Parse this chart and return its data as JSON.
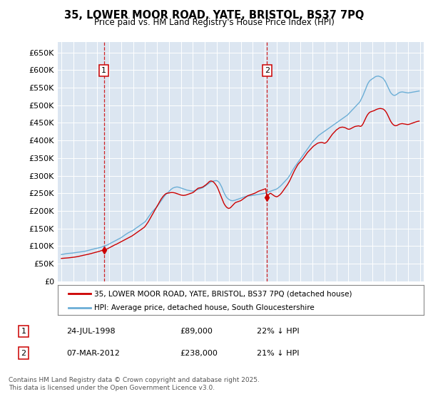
{
  "title": "35, LOWER MOOR ROAD, YATE, BRISTOL, BS37 7PQ",
  "subtitle": "Price paid vs. HM Land Registry's House Price Index (HPI)",
  "legend_line1": "35, LOWER MOOR ROAD, YATE, BRISTOL, BS37 7PQ (detached house)",
  "legend_line2": "HPI: Average price, detached house, South Gloucestershire",
  "footnote": "Contains HM Land Registry data © Crown copyright and database right 2025.\nThis data is licensed under the Open Government Licence v3.0.",
  "transactions": [
    {
      "label": "1",
      "date": "24-JUL-1998",
      "price": 89000,
      "pct": "22%",
      "direction": "↓",
      "year_x": 1998.56
    },
    {
      "label": "2",
      "date": "07-MAR-2012",
      "price": 238000,
      "pct": "21%",
      "direction": "↓",
      "year_x": 2012.19
    }
  ],
  "vline_color": "#cc0000",
  "hpi_color": "#6baed6",
  "price_color": "#cc0000",
  "plot_bg": "#dce6f1",
  "grid_color": "#ffffff",
  "ylim": [
    0,
    680000
  ],
  "yticks": [
    0,
    50000,
    100000,
    150000,
    200000,
    250000,
    300000,
    350000,
    400000,
    450000,
    500000,
    550000,
    600000,
    650000
  ],
  "xlim_start": 1994.7,
  "xlim_end": 2025.3,
  "xticks": [
    1995,
    1996,
    1997,
    1998,
    1999,
    2000,
    2001,
    2002,
    2003,
    2004,
    2005,
    2006,
    2007,
    2008,
    2009,
    2010,
    2011,
    2012,
    2013,
    2014,
    2015,
    2016,
    2017,
    2018,
    2019,
    2020,
    2021,
    2022,
    2023,
    2024,
    2025
  ],
  "hpi_years": [
    1995.0,
    1995.08,
    1995.17,
    1995.25,
    1995.33,
    1995.42,
    1995.5,
    1995.58,
    1995.67,
    1995.75,
    1995.83,
    1995.92,
    1996.0,
    1996.08,
    1996.17,
    1996.25,
    1996.33,
    1996.42,
    1996.5,
    1996.58,
    1996.67,
    1996.75,
    1996.83,
    1996.92,
    1997.0,
    1997.08,
    1997.17,
    1997.25,
    1997.33,
    1997.42,
    1997.5,
    1997.58,
    1997.67,
    1997.75,
    1997.83,
    1997.92,
    1998.0,
    1998.08,
    1998.17,
    1998.25,
    1998.33,
    1998.42,
    1998.5,
    1998.58,
    1998.67,
    1998.75,
    1998.83,
    1998.92,
    1999.0,
    1999.08,
    1999.17,
    1999.25,
    1999.33,
    1999.42,
    1999.5,
    1999.58,
    1999.67,
    1999.75,
    1999.83,
    1999.92,
    2000.0,
    2000.08,
    2000.17,
    2000.25,
    2000.33,
    2000.42,
    2000.5,
    2000.58,
    2000.67,
    2000.75,
    2000.83,
    2000.92,
    2001.0,
    2001.08,
    2001.17,
    2001.25,
    2001.33,
    2001.42,
    2001.5,
    2001.58,
    2001.67,
    2001.75,
    2001.83,
    2001.92,
    2002.0,
    2002.08,
    2002.17,
    2002.25,
    2002.33,
    2002.42,
    2002.5,
    2002.58,
    2002.67,
    2002.75,
    2002.83,
    2002.92,
    2003.0,
    2003.08,
    2003.17,
    2003.25,
    2003.33,
    2003.42,
    2003.5,
    2003.58,
    2003.67,
    2003.75,
    2003.83,
    2003.92,
    2004.0,
    2004.08,
    2004.17,
    2004.25,
    2004.33,
    2004.42,
    2004.5,
    2004.58,
    2004.67,
    2004.75,
    2004.83,
    2004.92,
    2005.0,
    2005.08,
    2005.17,
    2005.25,
    2005.33,
    2005.42,
    2005.5,
    2005.58,
    2005.67,
    2005.75,
    2005.83,
    2005.92,
    2006.0,
    2006.08,
    2006.17,
    2006.25,
    2006.33,
    2006.42,
    2006.5,
    2006.58,
    2006.67,
    2006.75,
    2006.83,
    2006.92,
    2007.0,
    2007.08,
    2007.17,
    2007.25,
    2007.33,
    2007.42,
    2007.5,
    2007.58,
    2007.67,
    2007.75,
    2007.83,
    2007.92,
    2008.0,
    2008.08,
    2008.17,
    2008.25,
    2008.33,
    2008.42,
    2008.5,
    2008.58,
    2008.67,
    2008.75,
    2008.83,
    2008.92,
    2009.0,
    2009.08,
    2009.17,
    2009.25,
    2009.33,
    2009.42,
    2009.5,
    2009.58,
    2009.67,
    2009.75,
    2009.83,
    2009.92,
    2010.0,
    2010.08,
    2010.17,
    2010.25,
    2010.33,
    2010.42,
    2010.5,
    2010.58,
    2010.67,
    2010.75,
    2010.83,
    2010.92,
    2011.0,
    2011.08,
    2011.17,
    2011.25,
    2011.33,
    2011.42,
    2011.5,
    2011.58,
    2011.67,
    2011.75,
    2011.83,
    2011.92,
    2012.0,
    2012.08,
    2012.17,
    2012.25,
    2012.33,
    2012.42,
    2012.5,
    2012.58,
    2012.67,
    2012.75,
    2012.83,
    2012.92,
    2013.0,
    2013.08,
    2013.17,
    2013.25,
    2013.33,
    2013.42,
    2013.5,
    2013.58,
    2013.67,
    2013.75,
    2013.83,
    2013.92,
    2014.0,
    2014.08,
    2014.17,
    2014.25,
    2014.33,
    2014.42,
    2014.5,
    2014.58,
    2014.67,
    2014.75,
    2014.83,
    2014.92,
    2015.0,
    2015.08,
    2015.17,
    2015.25,
    2015.33,
    2015.42,
    2015.5,
    2015.58,
    2015.67,
    2015.75,
    2015.83,
    2015.92,
    2016.0,
    2016.08,
    2016.17,
    2016.25,
    2016.33,
    2016.42,
    2016.5,
    2016.58,
    2016.67,
    2016.75,
    2016.83,
    2016.92,
    2017.0,
    2017.08,
    2017.17,
    2017.25,
    2017.33,
    2017.42,
    2017.5,
    2017.58,
    2017.67,
    2017.75,
    2017.83,
    2017.92,
    2018.0,
    2018.08,
    2018.17,
    2018.25,
    2018.33,
    2018.42,
    2018.5,
    2018.58,
    2018.67,
    2018.75,
    2018.83,
    2018.92,
    2019.0,
    2019.08,
    2019.17,
    2019.25,
    2019.33,
    2019.42,
    2019.5,
    2019.58,
    2019.67,
    2019.75,
    2019.83,
    2019.92,
    2020.0,
    2020.08,
    2020.17,
    2020.25,
    2020.33,
    2020.42,
    2020.5,
    2020.58,
    2020.67,
    2020.75,
    2020.83,
    2020.92,
    2021.0,
    2021.08,
    2021.17,
    2021.25,
    2021.33,
    2021.42,
    2021.5,
    2021.58,
    2021.67,
    2021.75,
    2021.83,
    2021.92,
    2022.0,
    2022.08,
    2022.17,
    2022.25,
    2022.33,
    2022.42,
    2022.5,
    2022.58,
    2022.67,
    2022.75,
    2022.83,
    2022.92,
    2023.0,
    2023.08,
    2023.17,
    2023.25,
    2023.33,
    2023.42,
    2023.5,
    2023.58,
    2023.67,
    2023.75,
    2023.83,
    2023.92,
    2024.0,
    2024.08,
    2024.17,
    2024.25,
    2024.33,
    2024.42,
    2024.5,
    2024.58,
    2024.67,
    2024.75,
    2024.83,
    2024.92
  ],
  "hpi_values": [
    76000,
    76500,
    77000,
    77500,
    78000,
    78500,
    79000,
    79200,
    79500,
    79800,
    80000,
    80200,
    80500,
    81000,
    81500,
    82000,
    82300,
    82700,
    83000,
    83400,
    83800,
    84200,
    84600,
    85000,
    85500,
    86200,
    87000,
    87800,
    88500,
    89200,
    90000,
    90800,
    91500,
    92200,
    93000,
    93500,
    94000,
    94800,
    95500,
    96200,
    97000,
    98000,
    99000,
    100000,
    101000,
    102000,
    103000,
    104500,
    106000,
    107500,
    109000,
    110500,
    112000,
    113500,
    115000,
    116500,
    118000,
    119500,
    121000,
    122500,
    124000,
    126000,
    128000,
    130000,
    132000,
    134000,
    136000,
    137500,
    139000,
    140500,
    142000,
    143500,
    145000,
    147000,
    149000,
    151000,
    153000,
    155000,
    157000,
    159000,
    161000,
    163000,
    165000,
    167000,
    169000,
    173000,
    177000,
    181000,
    185000,
    189000,
    193000,
    197000,
    200000,
    203000,
    206000,
    209000,
    212000,
    216000,
    220000,
    224000,
    228000,
    232000,
    236000,
    240000,
    244000,
    247000,
    250000,
    252000,
    255000,
    258000,
    261000,
    263000,
    265000,
    266000,
    267000,
    267500,
    268000,
    267500,
    267000,
    266000,
    265000,
    264000,
    263000,
    262000,
    261000,
    260000,
    259000,
    258500,
    258000,
    257500,
    257000,
    256500,
    256000,
    257000,
    258000,
    259000,
    260000,
    261000,
    262000,
    263000,
    264000,
    265000,
    266000,
    268000,
    270000,
    272000,
    274000,
    276000,
    278000,
    280000,
    282000,
    283000,
    284000,
    285000,
    285500,
    286000,
    286000,
    284000,
    282000,
    278000,
    273000,
    267000,
    260000,
    253000,
    247000,
    242000,
    238000,
    235000,
    233000,
    231000,
    230000,
    229000,
    229000,
    229500,
    230000,
    231000,
    232000,
    233000,
    234000,
    235000,
    236000,
    237000,
    238000,
    239000,
    240000,
    241000,
    241500,
    242000,
    242500,
    243000,
    243200,
    243500,
    244000,
    244500,
    245000,
    245500,
    246000,
    246500,
    247000,
    247500,
    248000,
    248500,
    249000,
    249500,
    250000,
    251000,
    252000,
    253000,
    254000,
    255000,
    256000,
    257000,
    258000,
    259000,
    260000,
    261000,
    262000,
    264000,
    266000,
    268500,
    271000,
    274000,
    277000,
    280000,
    283000,
    286000,
    289000,
    292000,
    296000,
    300000,
    305000,
    310000,
    315000,
    320000,
    324000,
    328000,
    332000,
    336000,
    340000,
    344000,
    348000,
    352000,
    356000,
    360000,
    364000,
    368000,
    372000,
    376000,
    380000,
    384000,
    388000,
    392000,
    396000,
    399000,
    402000,
    405000,
    408000,
    411000,
    414000,
    416000,
    418000,
    420000,
    422000,
    424000,
    426000,
    428000,
    430000,
    432000,
    434000,
    436000,
    438000,
    440000,
    442000,
    444000,
    446000,
    448000,
    450000,
    452000,
    454000,
    456000,
    458000,
    460000,
    462000,
    464000,
    466000,
    468000,
    470000,
    472000,
    475000,
    478000,
    481000,
    484000,
    487000,
    490000,
    493000,
    496000,
    499000,
    502000,
    505000,
    508000,
    512000,
    518000,
    524000,
    530000,
    537000,
    544000,
    551000,
    558000,
    564000,
    568000,
    571000,
    573000,
    575000,
    577000,
    579000,
    581000,
    582000,
    582500,
    583000,
    582000,
    581000,
    580000,
    578000,
    576000,
    572000,
    568000,
    562000,
    556000,
    550000,
    544000,
    538000,
    534000,
    531000,
    529000,
    528000,
    528500,
    530000,
    532000,
    534000,
    536000,
    537000,
    537500,
    538000,
    537500,
    537000,
    536500,
    536000,
    535500,
    535000,
    535500,
    536000,
    536500,
    537000,
    537500,
    538000,
    538500,
    539000,
    539500,
    540000,
    540500
  ],
  "price_years": [
    1995.0,
    1995.083,
    1995.167,
    1995.25,
    1995.333,
    1995.417,
    1995.5,
    1995.583,
    1995.667,
    1995.75,
    1995.833,
    1995.917,
    1996.0,
    1996.083,
    1996.167,
    1996.25,
    1996.333,
    1996.417,
    1996.5,
    1996.583,
    1996.667,
    1996.75,
    1996.833,
    1996.917,
    1997.0,
    1997.083,
    1997.167,
    1997.25,
    1997.333,
    1997.417,
    1997.5,
    1997.583,
    1997.667,
    1997.75,
    1997.833,
    1997.917,
    1998.0,
    1998.083,
    1998.167,
    1998.25,
    1998.333,
    1998.417,
    1998.5,
    1998.56,
    1998.667,
    1998.75,
    1998.833,
    1998.917,
    1999.0,
    1999.083,
    1999.167,
    1999.25,
    1999.333,
    1999.417,
    1999.5,
    1999.583,
    1999.667,
    1999.75,
    1999.833,
    1999.917,
    2000.0,
    2000.083,
    2000.167,
    2000.25,
    2000.333,
    2000.417,
    2000.5,
    2000.583,
    2000.667,
    2000.75,
    2000.833,
    2000.917,
    2001.0,
    2001.083,
    2001.167,
    2001.25,
    2001.333,
    2001.417,
    2001.5,
    2001.583,
    2001.667,
    2001.75,
    2001.833,
    2001.917,
    2002.0,
    2002.083,
    2002.167,
    2002.25,
    2002.333,
    2002.417,
    2002.5,
    2002.583,
    2002.667,
    2002.75,
    2002.833,
    2002.917,
    2003.0,
    2003.083,
    2003.167,
    2003.25,
    2003.333,
    2003.417,
    2003.5,
    2003.583,
    2003.667,
    2003.75,
    2003.833,
    2003.917,
    2004.0,
    2004.083,
    2004.167,
    2004.25,
    2004.333,
    2004.417,
    2004.5,
    2004.583,
    2004.667,
    2004.75,
    2004.833,
    2004.917,
    2005.0,
    2005.083,
    2005.167,
    2005.25,
    2005.333,
    2005.417,
    2005.5,
    2005.583,
    2005.667,
    2005.75,
    2005.833,
    2005.917,
    2006.0,
    2006.083,
    2006.167,
    2006.25,
    2006.333,
    2006.417,
    2006.5,
    2006.583,
    2006.667,
    2006.75,
    2006.833,
    2006.917,
    2007.0,
    2007.083,
    2007.167,
    2007.25,
    2007.333,
    2007.417,
    2007.5,
    2007.583,
    2007.667,
    2007.75,
    2007.833,
    2007.917,
    2008.0,
    2008.083,
    2008.167,
    2008.25,
    2008.333,
    2008.417,
    2008.5,
    2008.583,
    2008.667,
    2008.75,
    2008.833,
    2008.917,
    2009.0,
    2009.083,
    2009.167,
    2009.25,
    2009.333,
    2009.417,
    2009.5,
    2009.583,
    2009.667,
    2009.75,
    2009.833,
    2009.917,
    2010.0,
    2010.083,
    2010.167,
    2010.25,
    2010.333,
    2010.417,
    2010.5,
    2010.583,
    2010.667,
    2010.75,
    2010.833,
    2010.917,
    2011.0,
    2011.083,
    2011.167,
    2011.25,
    2011.333,
    2011.417,
    2011.5,
    2011.583,
    2011.667,
    2011.75,
    2011.833,
    2011.917,
    2012.0,
    2012.083,
    2012.19,
    2012.25,
    2012.333,
    2012.417,
    2012.5,
    2012.583,
    2012.667,
    2012.75,
    2012.833,
    2012.917,
    2013.0,
    2013.083,
    2013.167,
    2013.25,
    2013.333,
    2013.417,
    2013.5,
    2013.583,
    2013.667,
    2013.75,
    2013.833,
    2013.917,
    2014.0,
    2014.083,
    2014.167,
    2014.25,
    2014.333,
    2014.417,
    2014.5,
    2014.583,
    2014.667,
    2014.75,
    2014.833,
    2014.917,
    2015.0,
    2015.083,
    2015.167,
    2015.25,
    2015.333,
    2015.417,
    2015.5,
    2015.583,
    2015.667,
    2015.75,
    2015.833,
    2015.917,
    2016.0,
    2016.083,
    2016.167,
    2016.25,
    2016.333,
    2016.417,
    2016.5,
    2016.583,
    2016.667,
    2016.75,
    2016.833,
    2016.917,
    2017.0,
    2017.083,
    2017.167,
    2017.25,
    2017.333,
    2017.417,
    2017.5,
    2017.583,
    2017.667,
    2017.75,
    2017.833,
    2017.917,
    2018.0,
    2018.083,
    2018.167,
    2018.25,
    2018.333,
    2018.417,
    2018.5,
    2018.583,
    2018.667,
    2018.75,
    2018.833,
    2018.917,
    2019.0,
    2019.083,
    2019.167,
    2019.25,
    2019.333,
    2019.417,
    2019.5,
    2019.583,
    2019.667,
    2019.75,
    2019.833,
    2019.917,
    2020.0,
    2020.083,
    2020.167,
    2020.25,
    2020.333,
    2020.417,
    2020.5,
    2020.583,
    2020.667,
    2020.75,
    2020.833,
    2020.917,
    2021.0,
    2021.083,
    2021.167,
    2021.25,
    2021.333,
    2021.417,
    2021.5,
    2021.583,
    2021.667,
    2021.75,
    2021.833,
    2021.917,
    2022.0,
    2022.083,
    2022.167,
    2022.25,
    2022.333,
    2022.417,
    2022.5,
    2022.583,
    2022.667,
    2022.75,
    2022.833,
    2022.917,
    2023.0,
    2023.083,
    2023.167,
    2023.25,
    2023.333,
    2023.417,
    2023.5,
    2023.583,
    2023.667,
    2023.75,
    2023.833,
    2023.917,
    2024.0,
    2024.083,
    2024.167,
    2024.25,
    2024.333,
    2024.417,
    2024.5,
    2024.583,
    2024.667,
    2024.75,
    2024.83,
    2024.917
  ],
  "price_values": [
    65000,
    65200,
    65400,
    65600,
    65800,
    66000,
    66300,
    66600,
    66900,
    67200,
    67500,
    67800,
    68200,
    68600,
    69000,
    69500,
    70000,
    70500,
    71200,
    71800,
    72500,
    73200,
    73800,
    74500,
    75000,
    75500,
    76200,
    76800,
    77500,
    78200,
    79000,
    79800,
    80500,
    81200,
    82000,
    82800,
    83500,
    84200,
    85000,
    86000,
    87000,
    88000,
    89000,
    89000,
    90000,
    91000,
    92000,
    93500,
    95000,
    96500,
    98000,
    99500,
    101000,
    102500,
    104000,
    105000,
    106500,
    108000,
    109500,
    111000,
    112500,
    114000,
    115500,
    117000,
    118500,
    120000,
    121500,
    123000,
    124500,
    126000,
    127500,
    129000,
    131000,
    133000,
    135000,
    137000,
    139000,
    141000,
    143000,
    145000,
    147000,
    149000,
    151000,
    153000,
    156000,
    160000,
    164000,
    168000,
    173000,
    178000,
    183000,
    188000,
    193000,
    198000,
    203000,
    208000,
    213000,
    218000,
    223000,
    228000,
    233000,
    237000,
    241000,
    244000,
    247000,
    249000,
    250000,
    250500,
    251000,
    251500,
    252000,
    252000,
    252000,
    251500,
    251000,
    250000,
    249000,
    248000,
    247000,
    246000,
    245000,
    244500,
    244000,
    244000,
    244500,
    245000,
    246000,
    247000,
    248000,
    249000,
    250000,
    251000,
    252000,
    254000,
    256500,
    259000,
    261500,
    264000,
    265000,
    265500,
    266000,
    267000,
    268000,
    270000,
    272000,
    274000,
    276500,
    279000,
    282000,
    284000,
    285000,
    284500,
    283500,
    281000,
    278000,
    274000,
    270000,
    264000,
    257000,
    250000,
    243000,
    236000,
    229000,
    222000,
    217000,
    213000,
    210000,
    208000,
    207000,
    208000,
    210000,
    213000,
    216000,
    219000,
    222000,
    224000,
    225000,
    226000,
    227000,
    228000,
    229000,
    231000,
    233000,
    235000,
    237000,
    239000,
    241000,
    243000,
    244000,
    245000,
    246000,
    247000,
    248000,
    249000,
    250000,
    251500,
    253000,
    254500,
    256000,
    257000,
    258000,
    259000,
    260000,
    261000,
    262000,
    263000,
    238000,
    242000,
    246000,
    249000,
    250000,
    248000,
    246000,
    244000,
    242000,
    241000,
    240000,
    241000,
    243000,
    245000,
    248000,
    251000,
    255000,
    259000,
    263000,
    267000,
    271000,
    275000,
    280000,
    285000,
    291000,
    297000,
    303000,
    309000,
    315000,
    320000,
    325000,
    330000,
    334000,
    337000,
    340000,
    343000,
    346500,
    350000,
    354000,
    358000,
    362000,
    366000,
    369000,
    372000,
    375000,
    378000,
    381000,
    384000,
    386000,
    388000,
    390000,
    392000,
    393000,
    393500,
    394000,
    394500,
    394000,
    393000,
    392000,
    393000,
    395000,
    398000,
    402000,
    406000,
    410000,
    414000,
    418000,
    421000,
    424000,
    427000,
    430000,
    432000,
    434000,
    436000,
    437000,
    437500,
    438000,
    437500,
    437000,
    436000,
    434500,
    433000,
    432000,
    432000,
    433000,
    434500,
    436000,
    437500,
    439000,
    440000,
    440500,
    441000,
    441500,
    441000,
    440000,
    441000,
    444000,
    449000,
    455000,
    461000,
    467000,
    472000,
    476000,
    479000,
    481000,
    482000,
    483000,
    484000,
    485000,
    486500,
    488000,
    489000,
    490000,
    490500,
    491000,
    490500,
    490000,
    489000,
    487000,
    484000,
    480000,
    475000,
    469000,
    463000,
    457000,
    452000,
    448000,
    445000,
    443000,
    442000,
    442000,
    443000,
    444500,
    446000,
    447000,
    447500,
    448000,
    447500,
    447000,
    446500,
    446000,
    445500,
    445500,
    446000,
    447000,
    448000,
    449000,
    450000,
    451000,
    452000,
    453000,
    454000,
    454500,
    455000
  ]
}
